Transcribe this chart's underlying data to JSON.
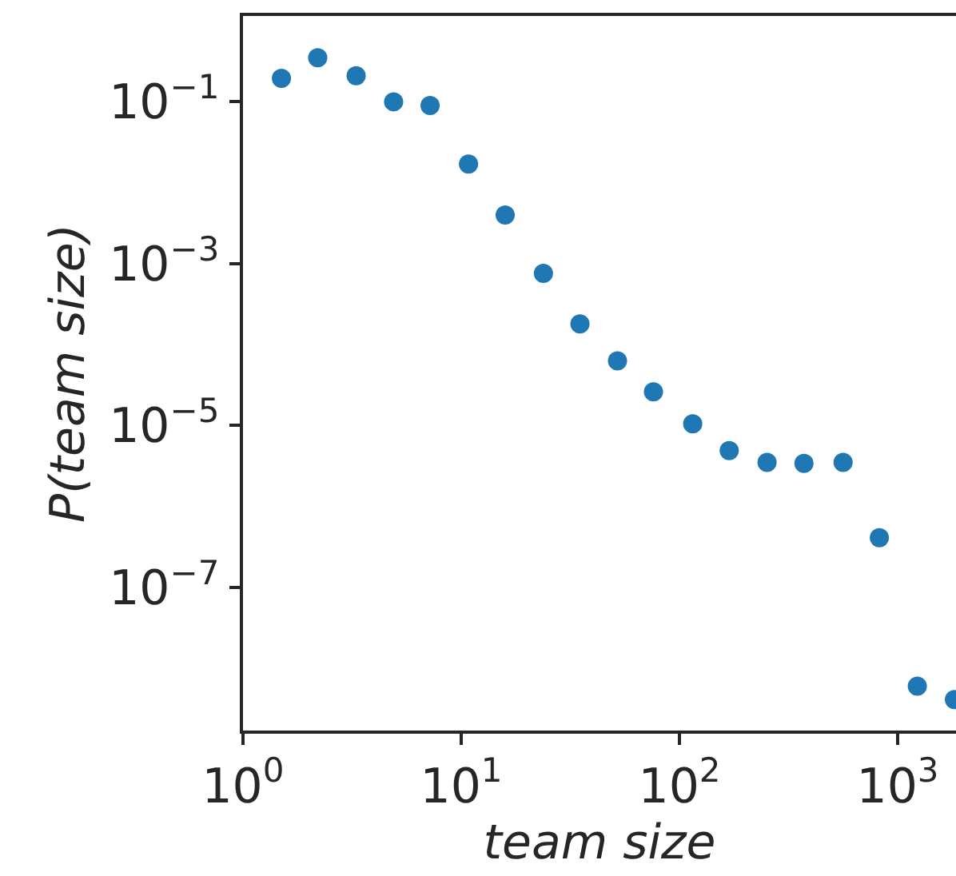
{
  "chart_data": {
    "type": "scatter",
    "xlabel": "team size",
    "ylabel": "P(team size)",
    "log": "xy",
    "marker": "circle",
    "grid": false,
    "x": [
      1.5,
      2.2,
      3.3,
      4.9,
      7.2,
      10.8,
      15.9,
      23.8,
      35,
      52,
      76,
      115,
      169,
      252,
      372,
      562,
      824,
      1230,
      1820
    ],
    "series": [
      {
        "color": "#1f77b4",
        "values": [
          0.195,
          0.35,
          0.21,
          0.1,
          0.09,
          0.017,
          0.004,
          0.00076,
          0.00018,
          6.3e-05,
          2.6e-05,
          1.05e-05,
          4.9e-06,
          3.5e-06,
          3.4e-06,
          3.5e-06,
          4.1e-07,
          6e-09,
          4.1e-09
        ]
      }
    ],
    "xlim": [
      1,
      1850
    ],
    "ylim": [
      1.7e-09,
      1.15
    ],
    "xticks": [
      {
        "value": 1,
        "label": "10$^{0}$"
      },
      {
        "value": 10,
        "label": "10$^{1}$"
      },
      {
        "value": 100,
        "label": "10$^{2}$"
      },
      {
        "value": 1000,
        "label": "10$^{3}$"
      }
    ],
    "yticks": [
      {
        "value": 0.1,
        "label": "10$^{−1}$"
      },
      {
        "value": 0.001,
        "label": "10$^{−3}$"
      },
      {
        "value": 1e-05,
        "label": "10$^{−5}$"
      },
      {
        "value": 1e-07,
        "label": "10$^{−7}$"
      }
    ]
  }
}
